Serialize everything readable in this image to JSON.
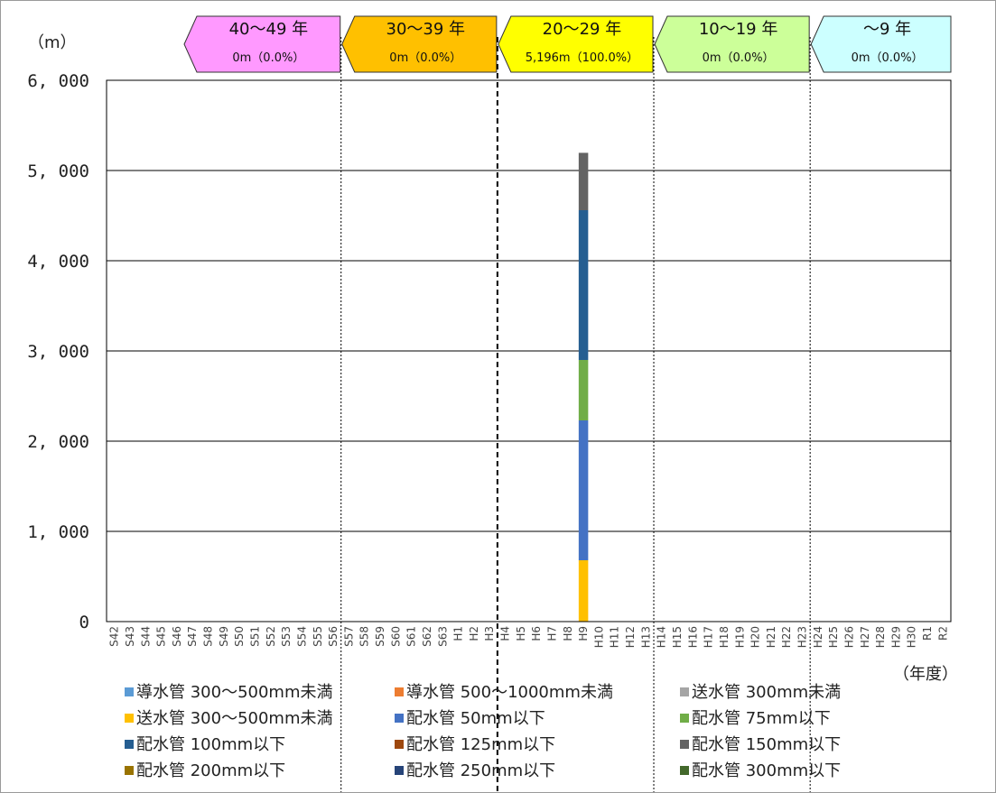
{
  "chart_data": {
    "type": "bar",
    "stacked": true,
    "y_unit": "（m）",
    "x_unit": "（年度）",
    "ylim": [
      0,
      6000
    ],
    "yticks": [
      "0",
      "1, 000",
      "2, 000",
      "3, 000",
      "4, 000",
      "5, 000",
      "6, 000"
    ],
    "ytick_values": [
      0,
      1000,
      2000,
      3000,
      4000,
      5000,
      6000
    ],
    "grid": true,
    "legend_position": "bottom",
    "categories": [
      "S42",
      "S43",
      "S44",
      "S45",
      "S46",
      "S47",
      "S48",
      "S49",
      "S50",
      "S51",
      "S52",
      "S53",
      "S54",
      "S55",
      "S56",
      "S57",
      "S58",
      "S59",
      "S60",
      "S61",
      "S62",
      "S63",
      "H1",
      "H2",
      "H3",
      "H4",
      "H5",
      "H6",
      "H7",
      "H8",
      "H9",
      "H10",
      "H11",
      "H12",
      "H13",
      "H14",
      "H15",
      "H16",
      "H17",
      "H18",
      "H19",
      "H20",
      "H21",
      "H22",
      "H23",
      "H24",
      "H25",
      "H26",
      "H27",
      "H28",
      "H29",
      "H30",
      "R1",
      "R2"
    ],
    "series": [
      {
        "name": "導水管 300～500mm未満",
        "color": "#5B9BD5",
        "points": []
      },
      {
        "name": "導水管 500～1000mm未満",
        "color": "#ED7D31",
        "points": []
      },
      {
        "name": "送水管 300mm未満",
        "color": "#A5A5A5",
        "points": []
      },
      {
        "name": "送水管 300～500mm未満",
        "color": "#FFC000",
        "points": [
          {
            "category": "H9",
            "value": 680
          }
        ]
      },
      {
        "name": "配水管 50mm以下",
        "color": "#4472C4",
        "points": [
          {
            "category": "H9",
            "value": 1550
          }
        ]
      },
      {
        "name": "配水管 75mm以下",
        "color": "#70AD47",
        "points": [
          {
            "category": "H9",
            "value": 670
          }
        ]
      },
      {
        "name": "配水管 100mm以下",
        "color": "#255E91",
        "points": [
          {
            "category": "H9",
            "value": 1660
          }
        ]
      },
      {
        "name": "配水管 125mm以下",
        "color": "#9E480E",
        "points": []
      },
      {
        "name": "配水管 150mm以下",
        "color": "#636363",
        "points": [
          {
            "category": "H9",
            "value": 636
          }
        ]
      },
      {
        "name": "配水管 200mm以下",
        "color": "#997300",
        "points": []
      },
      {
        "name": "配水管 250mm以下",
        "color": "#264478",
        "points": []
      },
      {
        "name": "配水管 300mm以下",
        "color": "#43682B",
        "points": []
      }
    ],
    "age_bands": [
      {
        "label": "40～49 年",
        "value": "0m（0.0%）",
        "color": "#FF99FF",
        "from": "S42",
        "to": "S56"
      },
      {
        "label": "30～39 年",
        "value": "0m（0.0%）",
        "color": "#FFC000",
        "from": "S56",
        "to": "H3"
      },
      {
        "label": "20～29 年",
        "value": "5,196m（100.0%）",
        "color": "#FFFF00",
        "from": "H3",
        "to": "H13"
      },
      {
        "label": "10～19 年",
        "value": "0m（0.0%）",
        "color": "#CCFF99",
        "from": "H13",
        "to": "H23"
      },
      {
        "label": "～9 年",
        "value": "0m（0.0%）",
        "color": "#CCFFFF",
        "from": "H23",
        "to": "R2"
      }
    ],
    "boundaries": [
      {
        "after": "S56",
        "style": "dotted"
      },
      {
        "after": "H3",
        "style": "dashed"
      },
      {
        "after": "H13",
        "style": "dotted"
      },
      {
        "after": "H23",
        "style": "dotted"
      }
    ]
  }
}
